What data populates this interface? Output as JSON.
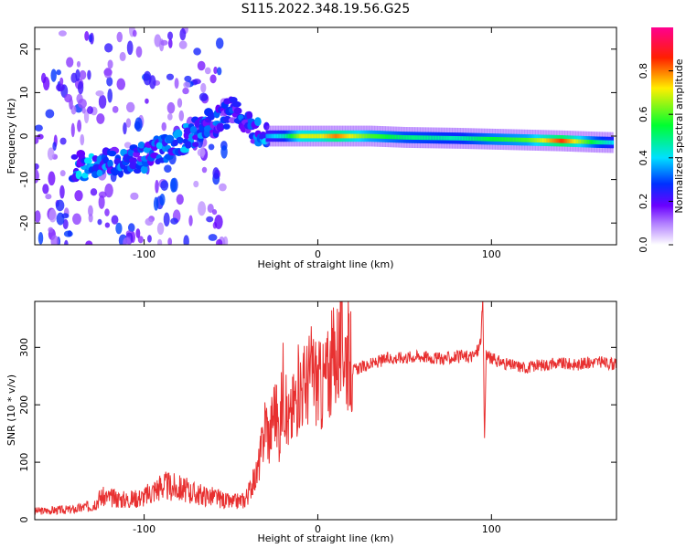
{
  "title": "S115.2022.348.19.56.G25",
  "chart_data": [
    {
      "type": "heatmap",
      "title": "S115.2022.348.19.56.G25",
      "xlabel": "Height of straight line (km)",
      "ylabel": "Frequency (Hz)",
      "xlim": [
        -163,
        172
      ],
      "ylim": [
        -25,
        25
      ],
      "x_ticks": [
        -100,
        0,
        100
      ],
      "x_tick_labels": [
        "-100",
        "0",
        "100"
      ],
      "y_ticks": [
        -20,
        -10,
        0,
        10,
        20
      ],
      "y_tick_labels": [
        "-20",
        "-10",
        "0",
        "10",
        "20"
      ],
      "colorbar": {
        "label": "Normalized spectral amplitude",
        "range": [
          0.0,
          1.0
        ],
        "ticks": [
          0.0,
          0.2,
          0.4,
          0.6,
          0.8
        ],
        "tick_labels": [
          "0.0",
          "0.2",
          "0.4",
          "0.6",
          "0.8"
        ],
        "colors": [
          "#ffffff",
          "#7a00ff",
          "#0030ff",
          "#00ffff",
          "#00ff00",
          "#ffff00",
          "#ff0000",
          "#ff00a0"
        ]
      },
      "ridge": {
        "x": [
          -135,
          -120,
          -100,
          -90,
          -80,
          -70,
          -60,
          -50,
          -45,
          -40,
          -30,
          -20,
          -10,
          0,
          10,
          30,
          50,
          80,
          100,
          120,
          140,
          160,
          170
        ],
        "frequency": [
          -7,
          -6,
          -5,
          -3,
          -1,
          1,
          3,
          6,
          4,
          2,
          0,
          0,
          0,
          0,
          0,
          0,
          -0.3,
          -0.5,
          -0.7,
          -0.9,
          -1.1,
          -1.4,
          -1.5
        ],
        "amplitude": [
          0.35,
          0.3,
          0.3,
          0.35,
          0.35,
          0.3,
          0.3,
          0.25,
          0.3,
          0.25,
          0.35,
          0.45,
          0.7,
          0.7,
          0.8,
          0.6,
          0.5,
          0.45,
          0.55,
          0.6,
          0.85,
          0.5,
          0.4
        ]
      }
    },
    {
      "type": "line",
      "xlabel": "Height of straight line (km)",
      "ylabel": "SNR (10 * v/v)",
      "xlim": [
        -163,
        172
      ],
      "ylim": [
        0,
        380
      ],
      "x_ticks": [
        -100,
        0,
        100
      ],
      "x_tick_labels": [
        "-100",
        "0",
        "100"
      ],
      "y_ticks": [
        0,
        100,
        200,
        300
      ],
      "y_tick_labels": [
        "0",
        "100",
        "200",
        "300"
      ],
      "color": "#e83030",
      "series": [
        {
          "x": [
            -163,
            -140,
            -130,
            -125,
            -110,
            -100,
            -90,
            -80,
            -70,
            -60,
            -50,
            -42,
            -38,
            -35,
            -32,
            -30,
            -28,
            -25,
            -22,
            -20,
            -18,
            -16,
            -14,
            -12,
            -10,
            -8,
            -5,
            -3,
            0,
            2,
            5,
            8,
            10,
            15,
            20,
            30,
            40,
            50,
            60,
            70,
            80,
            90,
            93,
            94,
            95,
            96,
            97,
            100,
            110,
            120,
            130,
            140,
            150,
            160,
            172
          ],
          "values": [
            15,
            18,
            25,
            40,
            35,
            40,
            60,
            55,
            45,
            40,
            30,
            35,
            60,
            80,
            130,
            180,
            140,
            200,
            150,
            240,
            180,
            170,
            200,
            220,
            240,
            230,
            250,
            260,
            240,
            230,
            250,
            270,
            290,
            310,
            260,
            270,
            280,
            283,
            285,
            280,
            283,
            285,
            300,
            320,
            380,
            140,
            290,
            280,
            270,
            265,
            270,
            272,
            270,
            275,
            270
          ]
        }
      ]
    }
  ]
}
